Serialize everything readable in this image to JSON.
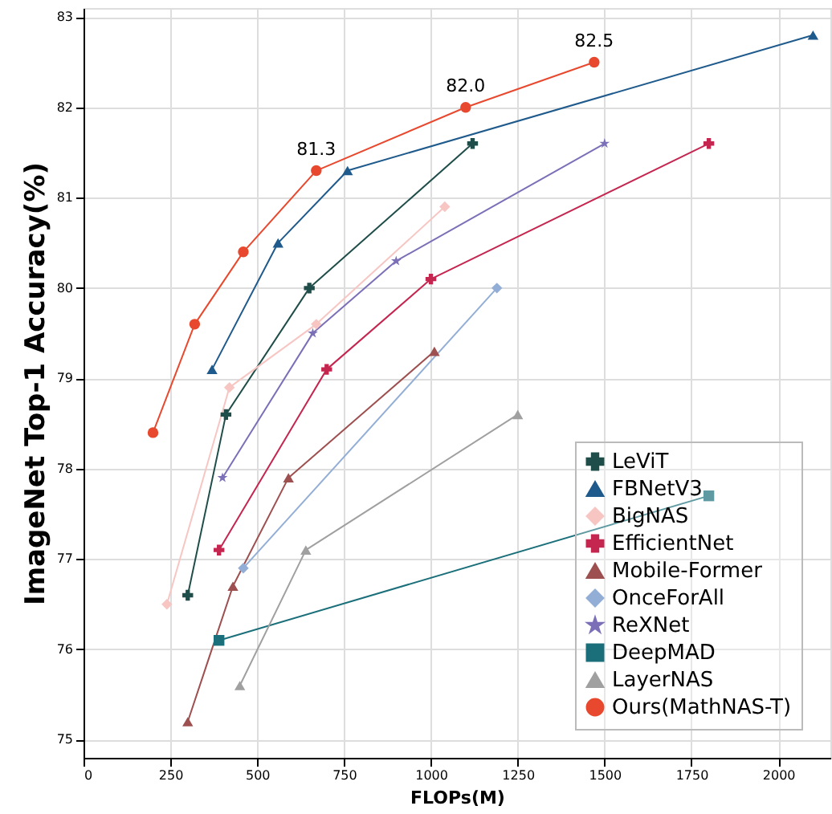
{
  "chart_data": {
    "type": "line",
    "xlabel": "FLOPs(M)",
    "ylabel": "ImageNet Top-1 Accuracy(%)",
    "xlim": [
      0,
      2150
    ],
    "ylim": [
      74.8,
      83.1
    ],
    "xticks": [
      0,
      250,
      500,
      750,
      1000,
      1250,
      1500,
      1750,
      2000
    ],
    "yticks": [
      75,
      76,
      77,
      78,
      79,
      80,
      81,
      82,
      83
    ],
    "grid": true,
    "legend": "bottom right",
    "line_style": "solid",
    "series": [
      {
        "name": "LeViT",
        "color": "#1f4e4a",
        "marker": "cross",
        "x": [
          300,
          410,
          650,
          1120
        ],
        "values": [
          76.6,
          78.6,
          80.0,
          81.6
        ]
      },
      {
        "name": "FBNetV3",
        "color": "#1f5a8c",
        "marker": "triangle",
        "x": [
          370,
          560,
          760,
          2100
        ],
        "values": [
          79.1,
          80.5,
          81.3,
          82.8
        ]
      },
      {
        "name": "BigNAS",
        "color": "#f7c6c3",
        "marker": "diamond",
        "x": [
          240,
          420,
          670,
          1040
        ],
        "values": [
          76.5,
          78.9,
          79.6,
          80.9
        ]
      },
      {
        "name": "EfficientNet",
        "color": "#c4264f",
        "marker": "cross",
        "x": [
          390,
          700,
          1000,
          1800
        ],
        "values": [
          77.1,
          79.1,
          80.1,
          81.6
        ]
      },
      {
        "name": "Mobile-Former",
        "color": "#9e4f4f",
        "marker": "triangle",
        "x": [
          300,
          430,
          590,
          1010
        ],
        "values": [
          75.2,
          76.7,
          77.9,
          79.3
        ]
      },
      {
        "name": "OnceForAll",
        "color": "#93aed6",
        "marker": "diamond",
        "x": [
          460,
          1190
        ],
        "values": [
          76.9,
          80.0
        ]
      },
      {
        "name": "ReXNet",
        "color": "#7b6fb8",
        "marker": "star",
        "x": [
          400,
          660,
          900,
          1500
        ],
        "values": [
          77.9,
          79.5,
          80.3,
          81.6
        ]
      },
      {
        "name": "DeepMAD",
        "color": "#1a6f7a",
        "marker": "square",
        "x": [
          390,
          1800
        ],
        "values": [
          76.1,
          77.7
        ]
      },
      {
        "name": "LayerNAS",
        "color": "#a0a0a0",
        "marker": "triangle",
        "x": [
          450,
          640,
          1250
        ],
        "values": [
          75.6,
          77.1,
          78.6
        ]
      },
      {
        "name": "Ours(MathNAS-T)",
        "color": "#e8492e",
        "marker": "circle",
        "x": [
          200,
          320,
          460,
          670,
          1100,
          1470
        ],
        "values": [
          78.4,
          79.6,
          80.4,
          81.3,
          82.0,
          82.5
        ]
      }
    ],
    "annotations": [
      {
        "text": "81.3",
        "x": 670,
        "y": 81.3
      },
      {
        "text": "82.0",
        "x": 1100,
        "y": 82.0
      },
      {
        "text": "82.5",
        "x": 1470,
        "y": 82.5
      }
    ]
  }
}
